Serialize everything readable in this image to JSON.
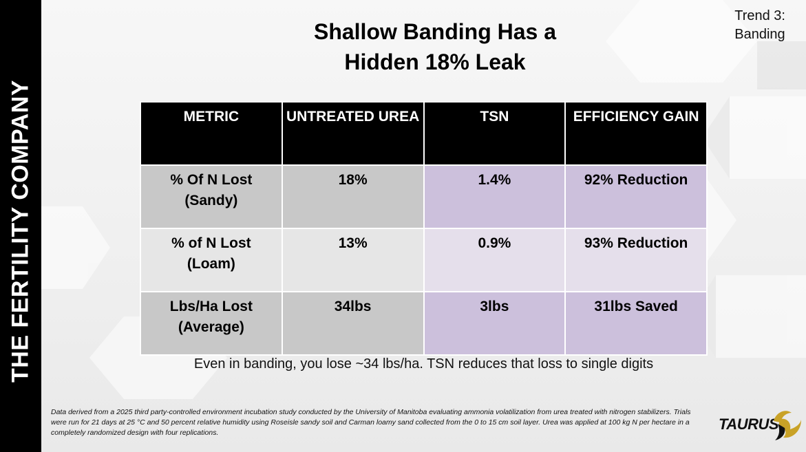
{
  "sidebar": {
    "company": "THE FERTILITY COMPANY"
  },
  "trend": {
    "line1": "Trend 3:",
    "line2": "Banding"
  },
  "title": {
    "line1": "Shallow Banding Has a",
    "line2": "Hidden 18% Leak"
  },
  "table": {
    "headers": [
      "METRIC",
      "UNTREATED UREA",
      "TSN",
      "EFFICIENCY GAIN"
    ],
    "rows": [
      {
        "metric_line1": "% Of N Lost",
        "metric_line2": "(Sandy)",
        "untreated": "18%",
        "tsn": "1.4%",
        "gain": "92% Reduction"
      },
      {
        "metric_line1": "% of N Lost",
        "metric_line2": "(Loam)",
        "untreated": "13%",
        "tsn": "0.9%",
        "gain": "93% Reduction"
      },
      {
        "metric_line1": "Lbs/Ha Lost",
        "metric_line2": "(Average)",
        "untreated": "34lbs",
        "tsn": "3lbs",
        "gain": "31lbs Saved"
      }
    ]
  },
  "caption": "Even in banding, you lose ~34 lbs/ha. TSN reduces that loss to single digits",
  "footnote": "Data derived from a 2025 third party-controlled environment incubation study conducted by the University of Manitoba evaluating ammonia volatilization from urea treated with nitrogen stabilizers. Trials were run for 21 days at 25 °C and 50 percent relative humidity using Roseisle sandy soil and Carman loamy sand collected from the 0 to 15 cm soil layer. Urea was applied at 100 kg N per hectare in a completely randomized design with four replications.",
  "logo": {
    "text": "TAURUS"
  },
  "colors": {
    "sidebar": "#000000",
    "header": "#000000",
    "gray_dark": "#c8c8c8",
    "gray_light": "#e6e6e6",
    "purple_dark": "#ccc0dc",
    "purple_light": "#e5dfeb",
    "logo_gold": "#c9a227"
  }
}
